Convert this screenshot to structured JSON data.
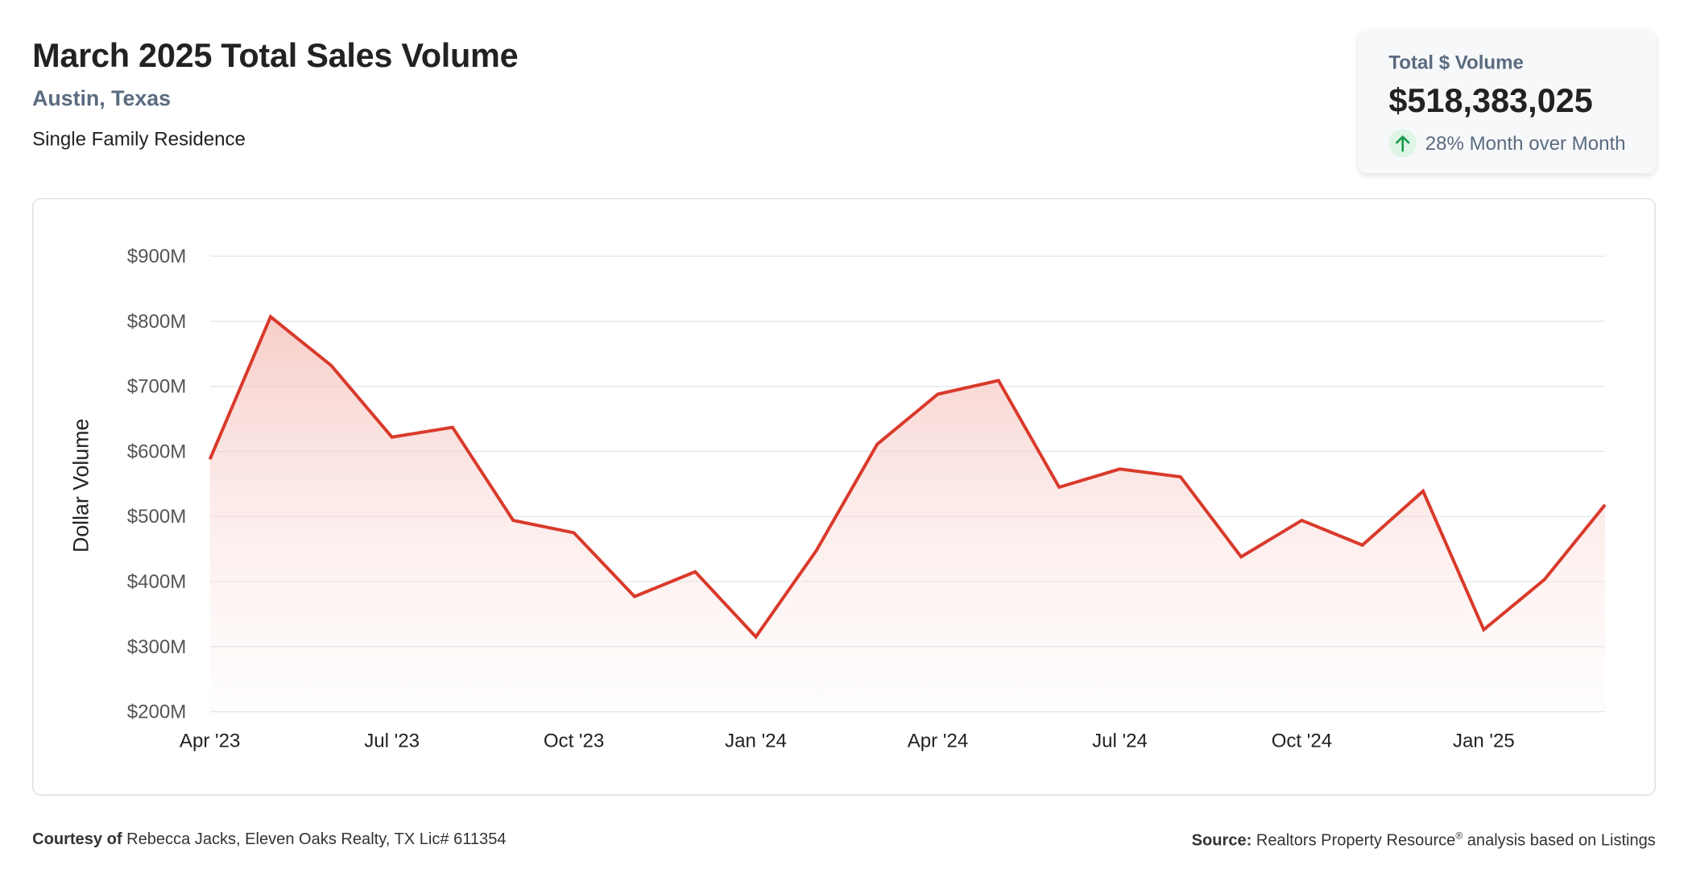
{
  "header": {
    "title": "March 2025 Total Sales Volume",
    "location": "Austin, Texas",
    "property_type": "Single Family Residence"
  },
  "kpi": {
    "label": "Total $ Volume",
    "value": "$518,383,025",
    "change": "28% Month over Month",
    "direction": "up",
    "arrow_icon": "arrow-up-icon",
    "positive_color": "#1a9b50"
  },
  "colors": {
    "line": "#d93a2b",
    "fill_top": "#f6c7c2",
    "grid": "#e3e6ea",
    "muted_text": "#5a6b7f"
  },
  "chart_data": {
    "type": "area",
    "title": "",
    "xlabel": "",
    "ylabel": "Dollar Volume",
    "ylim": [
      200,
      900
    ],
    "y_unit": "$M",
    "y_ticks": [
      "$200M",
      "$300M",
      "$400M",
      "$500M",
      "$600M",
      "$700M",
      "$800M",
      "$900M"
    ],
    "y_tick_values": [
      200,
      300,
      400,
      500,
      600,
      700,
      800,
      900
    ],
    "x_tick_labels": [
      "Apr '23",
      "Jul '23",
      "Oct '23",
      "Jan '24",
      "Apr '24",
      "Jul '24",
      "Oct '24",
      "Jan '25"
    ],
    "x_tick_index": [
      0,
      3,
      6,
      9,
      12,
      15,
      18,
      21
    ],
    "x": [
      "2023-04",
      "2023-05",
      "2023-06",
      "2023-07",
      "2023-08",
      "2023-09",
      "2023-10",
      "2023-11",
      "2023-12",
      "2024-01",
      "2024-02",
      "2024-03",
      "2024-04",
      "2024-05",
      "2024-06",
      "2024-07",
      "2024-08",
      "2024-09",
      "2024-10",
      "2024-11",
      "2024-12",
      "2025-01",
      "2025-02",
      "2025-03"
    ],
    "series": [
      {
        "values": [
          588,
          807,
          732,
          622,
          637,
          494,
          475,
          377,
          415,
          315,
          448,
          611,
          688,
          709,
          545,
          573,
          561,
          438,
          494,
          456,
          539,
          326,
          403,
          518
        ]
      }
    ],
    "grid": true,
    "legend": "none"
  },
  "footer": {
    "courtesy_label": "Courtesy of",
    "courtesy_text": "Rebecca Jacks, Eleven Oaks Realty, TX Lic# 611354",
    "source_label": "Source:",
    "source_text_1": "Realtors Property Resource",
    "source_reg": "®",
    "source_text_2": " analysis based on Listings"
  }
}
